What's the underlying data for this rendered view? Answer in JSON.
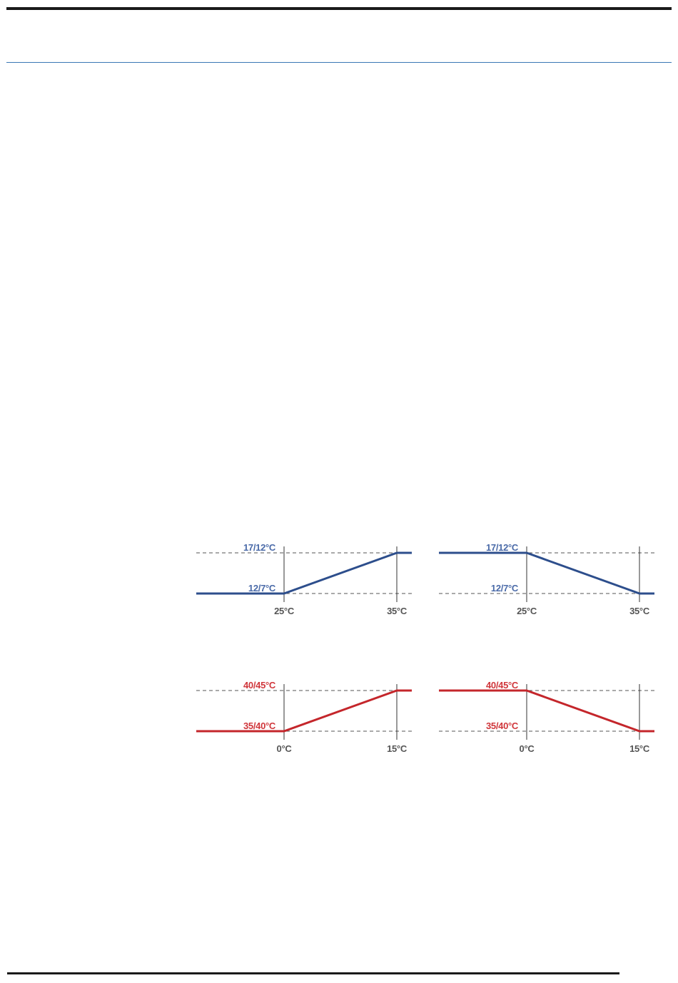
{
  "chart_data": [
    {
      "type": "line",
      "color": "#2d4e8c",
      "x_breakpoints": [
        "25°C",
        "35°C"
      ],
      "y_levels": [
        "12/7°C",
        "17/12°C"
      ],
      "series": [
        {
          "x": [
            "<25°C",
            "25°C",
            "35°C",
            ">35°C"
          ],
          "y": [
            "12/7°C",
            "12/7°C",
            "17/12°C",
            "17/12°C"
          ]
        }
      ],
      "trend": "rising"
    },
    {
      "type": "line",
      "color": "#2d4e8c",
      "x_breakpoints": [
        "25°C",
        "35°C"
      ],
      "y_levels": [
        "12/7°C",
        "17/12°C"
      ],
      "series": [
        {
          "x": [
            "<25°C",
            "25°C",
            "35°C",
            ">35°C"
          ],
          "y": [
            "17/12°C",
            "17/12°C",
            "12/7°C",
            "12/7°C"
          ]
        }
      ],
      "trend": "falling"
    },
    {
      "type": "line",
      "color": "#c4262b",
      "x_breakpoints": [
        "0°C",
        "15°C"
      ],
      "y_levels": [
        "35/40°C",
        "40/45°C"
      ],
      "series": [
        {
          "x": [
            "<0°C",
            "0°C",
            "15°C",
            ">15°C"
          ],
          "y": [
            "35/40°C",
            "35/40°C",
            "40/45°C",
            "40/45°C"
          ]
        }
      ],
      "trend": "rising"
    },
    {
      "type": "line",
      "color": "#c4262b",
      "x_breakpoints": [
        "0°C",
        "15°C"
      ],
      "y_levels": [
        "35/40°C",
        "40/45°C"
      ],
      "series": [
        {
          "x": [
            "<0°C",
            "0°C",
            "15°C",
            ">15°C"
          ],
          "y": [
            "40/45°C",
            "40/45°C",
            "35/40°C",
            "35/40°C"
          ]
        }
      ],
      "trend": "falling"
    }
  ]
}
